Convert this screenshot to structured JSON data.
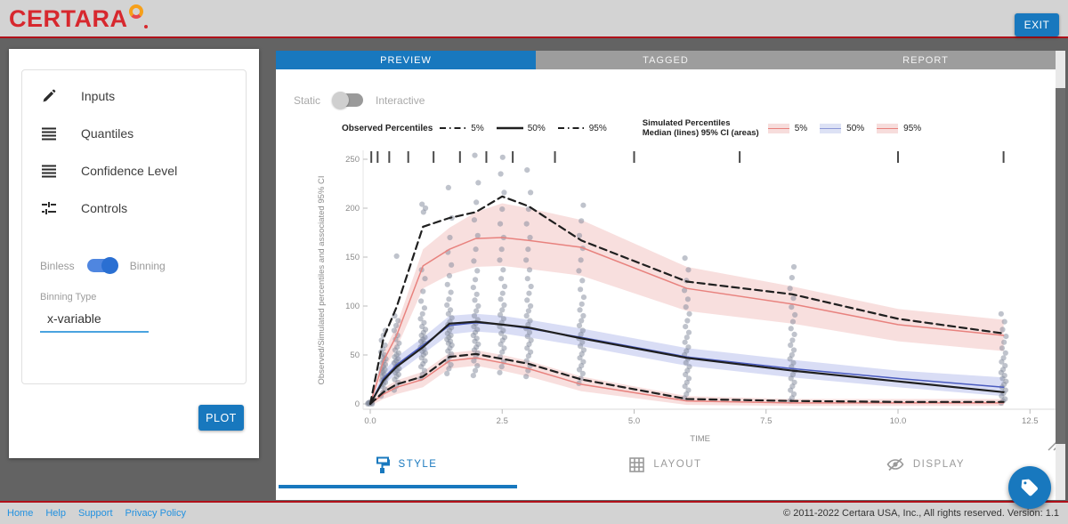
{
  "header": {
    "logo_text": "CERTARA",
    "exit_label": "EXIT"
  },
  "tabs": [
    {
      "label": "PREVIEW",
      "active": true
    },
    {
      "label": "TAGGED",
      "active": false
    },
    {
      "label": "REPORT",
      "active": false
    }
  ],
  "sidebar": {
    "items": [
      {
        "label": "Inputs",
        "icon": "pencil-icon"
      },
      {
        "label": "Quantiles",
        "icon": "list-icon"
      },
      {
        "label": "Confidence Level",
        "icon": "list-icon"
      },
      {
        "label": "Controls",
        "icon": "tune-icon"
      }
    ],
    "bin_toggle": {
      "off_label": "Binless",
      "on_label": "Binning",
      "state": "Binning"
    },
    "binning_type": {
      "label": "Binning Type",
      "value": "x-variable"
    },
    "plot_label": "PLOT"
  },
  "chart_panel": {
    "mode_toggle": {
      "left_label": "Static",
      "right_label": "Interactive",
      "state": "Static"
    },
    "legend": {
      "observed": {
        "title": "Observed Percentiles",
        "items": [
          {
            "label": "5%"
          },
          {
            "label": "50%"
          },
          {
            "label": "95%"
          }
        ]
      },
      "simulated": {
        "title_line1": "Simulated Percentiles",
        "title_line2": "Median (lines) 95% CI (areas)",
        "items": [
          {
            "label": "5%"
          },
          {
            "label": "50%"
          },
          {
            "label": "95%"
          }
        ]
      }
    }
  },
  "bottom_tabs": [
    {
      "label": "STYLE",
      "icon": "paint-roller-icon",
      "active": true
    },
    {
      "label": "LAYOUT",
      "icon": "grid-icon",
      "active": false
    },
    {
      "label": "DISPLAY",
      "icon": "eye-off-icon",
      "active": false
    }
  ],
  "footer": {
    "links": [
      "Home",
      "Help",
      "Support",
      "Privacy Policy"
    ],
    "copyright": "© 2011-2022 Certara USA, Inc., All rights reserved. Version: 1.1"
  },
  "colors": {
    "accent_blue": "#1878be",
    "sim_red": "#e8827e",
    "sim_red_band": "#f3c9c8",
    "sim_blue": "#4a5bbf",
    "sim_blue_band": "#b9c1ec",
    "observed_black": "#1f1f1f",
    "scatter_gray": "#7f8899",
    "logo_red": "#d7282e",
    "rule_red": "#b01019"
  },
  "chart_data": {
    "type": "line",
    "title": "",
    "xlabel": "TIME",
    "ylabel": "Observed/Simulated percentiles and associated 95% CI",
    "xlim": [
      0,
      12.5
    ],
    "ylim": [
      0,
      250
    ],
    "xticks": [
      "0.0",
      "2.5",
      "5.0",
      "7.5",
      "10.0",
      "12.5"
    ],
    "xtick_values": [
      0,
      2.5,
      5,
      7.5,
      10,
      12.5
    ],
    "yticks": [
      0,
      50,
      100,
      150,
      200,
      250
    ],
    "grid": false,
    "legend_position": "top",
    "bin_boundaries": [
      0.02,
      0.14,
      0.36,
      0.72,
      1.2,
      1.7,
      2.2,
      2.7,
      3.5,
      5.0,
      7.0,
      10.0,
      12.0
    ],
    "x": [
      0,
      0.25,
      0.5,
      1,
      1.5,
      2,
      2.5,
      3,
      4,
      6,
      8,
      10,
      12
    ],
    "series": [
      {
        "name": "observed-95%",
        "style": "dashed",
        "color": "#1f1f1f",
        "values": [
          0,
          67,
          99,
          181,
          190,
          196,
          212,
          202,
          167,
          125,
          112,
          87,
          72
        ]
      },
      {
        "name": "simulated-95%",
        "style": "solid",
        "color": "#e8827e",
        "values": [
          0,
          44,
          70,
          141,
          158,
          169,
          170,
          167,
          160,
          118,
          102,
          81,
          70
        ]
      },
      {
        "name": "observed-50%",
        "style": "solid",
        "color": "#1f1f1f",
        "values": [
          0,
          24,
          38,
          58,
          82,
          84,
          81,
          78,
          67,
          47,
          34,
          23,
          12
        ]
      },
      {
        "name": "simulated-50%",
        "style": "solid",
        "color": "#4a5bbf",
        "values": [
          0,
          26,
          40,
          60,
          80,
          83,
          81,
          77,
          68,
          48,
          36,
          26,
          17
        ]
      },
      {
        "name": "observed-5%",
        "style": "dashed",
        "color": "#1f1f1f",
        "values": [
          0,
          12,
          20,
          28,
          48,
          51,
          46,
          41,
          25,
          5,
          3,
          2,
          2
        ]
      },
      {
        "name": "simulated-5%",
        "style": "solid",
        "color": "#e8827e",
        "values": [
          0,
          10,
          17,
          25,
          44,
          47,
          42,
          36,
          20,
          3,
          1,
          1,
          1
        ]
      }
    ],
    "bands": [
      {
        "name": "ci-95%",
        "color": "#f3c9c8",
        "opacity": 0.6,
        "upper": [
          0,
          52,
          80,
          158,
          180,
          196,
          205,
          200,
          188,
          140,
          120,
          97,
          86
        ],
        "lower": [
          0,
          34,
          57,
          118,
          132,
          140,
          141,
          138,
          131,
          95,
          82,
          64,
          54
        ]
      },
      {
        "name": "ci-50%",
        "color": "#b9c1ec",
        "opacity": 0.55,
        "upper": [
          0,
          33,
          48,
          68,
          90,
          92,
          90,
          86,
          77,
          57,
          45,
          34,
          27
        ],
        "lower": [
          0,
          19,
          31,
          51,
          71,
          74,
          72,
          68,
          59,
          39,
          27,
          17,
          8
        ]
      },
      {
        "name": "ci-5%",
        "color": "#f3c9c8",
        "opacity": 0.6,
        "upper": [
          2,
          16,
          24,
          33,
          52,
          55,
          50,
          44,
          28,
          8,
          5,
          5,
          5
        ],
        "lower": [
          -2,
          5,
          10,
          17,
          36,
          39,
          34,
          28,
          13,
          -1,
          -2,
          -2,
          -2
        ]
      }
    ],
    "scatter": {
      "name": "observations",
      "color": "#7f8899",
      "opacity": 0.5,
      "points": [
        {
          "t": 0,
          "values": [
            0,
            0,
            1,
            1,
            2,
            0,
            1
          ]
        },
        {
          "t": 0.25,
          "values": [
            8,
            12,
            15,
            18,
            20,
            22,
            24,
            25,
            27,
            28,
            30,
            32,
            33,
            35,
            36,
            38,
            40,
            42,
            44,
            46,
            48,
            50,
            53,
            56,
            60,
            65,
            70,
            75
          ]
        },
        {
          "t": 0.5,
          "values": [
            14,
            18,
            22,
            25,
            28,
            30,
            32,
            34,
            36,
            38,
            40,
            42,
            44,
            46,
            48,
            50,
            52,
            55,
            58,
            62,
            66,
            70,
            75,
            80,
            85,
            90,
            151
          ]
        },
        {
          "t": 1,
          "values": [
            26,
            30,
            34,
            38,
            41,
            44,
            47,
            50,
            52,
            54,
            56,
            58,
            60,
            62,
            64,
            66,
            68,
            70,
            73,
            76,
            79,
            83,
            87,
            92,
            98,
            105,
            115,
            128,
            137,
            196,
            200,
            204
          ]
        },
        {
          "t": 1.5,
          "values": [
            31,
            36,
            40,
            44,
            48,
            51,
            54,
            57,
            60,
            62,
            64,
            66,
            68,
            70,
            72,
            75,
            78,
            81,
            84,
            88,
            92,
            96,
            101,
            107,
            114,
            122,
            131,
            142,
            155,
            170,
            190,
            221
          ]
        },
        {
          "t": 2,
          "values": [
            29,
            34,
            39,
            44,
            48,
            52,
            55,
            58,
            61,
            64,
            67,
            70,
            73,
            76,
            79,
            82,
            86,
            90,
            95,
            100,
            106,
            112,
            119,
            127,
            136,
            146,
            158,
            172,
            188,
            206,
            226,
            254
          ]
        },
        {
          "t": 2.5,
          "values": [
            32,
            38,
            43,
            48,
            53,
            57,
            61,
            65,
            68,
            72,
            75,
            79,
            83,
            87,
            91,
            96,
            101,
            107,
            113,
            120,
            128,
            137,
            147,
            158,
            170,
            184,
            199,
            216,
            235,
            252
          ]
        },
        {
          "t": 3,
          "values": [
            28,
            34,
            39,
            44,
            49,
            53,
            57,
            61,
            65,
            69,
            73,
            77,
            81,
            85,
            90,
            95,
            100,
            106,
            113,
            120,
            128,
            137,
            147,
            158,
            170,
            184,
            199,
            216,
            239
          ]
        },
        {
          "t": 4,
          "values": [
            21,
            26,
            31,
            35,
            39,
            43,
            47,
            51,
            55,
            59,
            63,
            67,
            71,
            75,
            80,
            85,
            90,
            96,
            102,
            109,
            117,
            126,
            136,
            147,
            159,
            172,
            187,
            203
          ]
        },
        {
          "t": 6,
          "values": [
            6,
            10,
            14,
            18,
            22,
            26,
            30,
            34,
            38,
            42,
            46,
            50,
            54,
            58,
            63,
            68,
            73,
            79,
            85,
            92,
            99,
            107,
            116,
            126,
            137,
            149
          ]
        },
        {
          "t": 8,
          "values": [
            3,
            6,
            10,
            14,
            18,
            22,
            26,
            30,
            34,
            38,
            42,
            46,
            50,
            55,
            60,
            65,
            71,
            77,
            84,
            91,
            99,
            108,
            118,
            129,
            140
          ]
        },
        {
          "t": 12,
          "values": [
            1,
            3,
            5,
            8,
            11,
            14,
            17,
            20,
            23,
            26,
            29,
            32,
            35,
            39,
            43,
            47,
            52,
            57,
            63,
            69,
            76,
            84,
            92
          ]
        }
      ]
    }
  }
}
